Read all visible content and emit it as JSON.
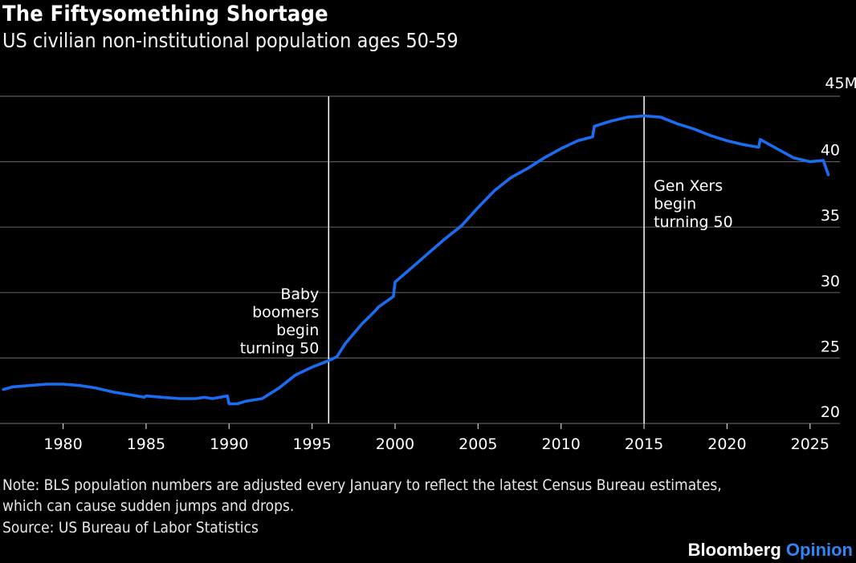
{
  "title": "The Fiftysomething Shortage",
  "subtitle": "US civilian non-institutional population ages 50-59",
  "note_line1": "Note: BLS population numbers are adjusted every January to reflect the latest Census Bureau estimates,",
  "note_line2": "which can cause sudden jumps and drops.",
  "source": "Source: US Bureau of Labor Statistics",
  "brand": {
    "name": "Bloomberg",
    "section": "Opinion"
  },
  "colors": {
    "line": "#1a6cf0",
    "grid": "#5a5a5a",
    "background": "#000000",
    "annotation_line": "#ffffff",
    "brand_accent": "#2f87f5"
  },
  "chart_data": {
    "type": "line",
    "x_unit": "year",
    "y_unit": "millions",
    "xlim": [
      1976.2,
      2026.8
    ],
    "ylim": [
      20,
      45
    ],
    "x_ticks": [
      1980,
      1985,
      1990,
      1995,
      2000,
      2005,
      2010,
      2015,
      2020,
      2025
    ],
    "y_ticks": [
      20,
      25,
      30,
      35,
      40,
      45
    ],
    "y_tick_labels": [
      "20",
      "25",
      "30",
      "35",
      "40",
      "45M"
    ],
    "y_axis_side": "right",
    "grid": "horizontal",
    "series": [
      {
        "x": [
          1976.4,
          1977.0,
          1978.0,
          1979.0,
          1980.0,
          1981.0,
          1982.0,
          1983.0,
          1984.0,
          1984.9,
          1985.0,
          1986.0,
          1987.0,
          1988.0,
          1988.5,
          1989.0,
          1989.9,
          1990.0,
          1990.5,
          1991.0,
          1991.5,
          1992.0,
          1993.0,
          1994.0,
          1995.0,
          1996.0,
          1996.5,
          1997.0,
          1998.0,
          1998.8,
          1999.0,
          1999.9,
          2000.0,
          2001.0,
          2002.0,
          2003.0,
          2004.0,
          2005.0,
          2006.0,
          2007.0,
          2008.0,
          2009.0,
          2010.0,
          2011.0,
          2011.9,
          2012.0,
          2013.0,
          2014.0,
          2015.0,
          2016.0,
          2017.0,
          2018.0,
          2019.0,
          2020.0,
          2021.0,
          2021.9,
          2022.0,
          2023.0,
          2024.0,
          2025.0,
          2025.8,
          2026.1
        ],
        "y": [
          22.6,
          22.8,
          22.9,
          23.0,
          23.0,
          22.9,
          22.7,
          22.4,
          22.2,
          22.0,
          22.1,
          22.0,
          21.9,
          21.9,
          22.0,
          21.9,
          22.1,
          21.5,
          21.5,
          21.7,
          21.8,
          21.9,
          22.7,
          23.7,
          24.3,
          24.8,
          25.1,
          26.1,
          27.6,
          28.6,
          28.9,
          29.7,
          30.8,
          31.9,
          33.0,
          34.1,
          35.1,
          36.5,
          37.8,
          38.8,
          39.5,
          40.3,
          41.0,
          41.6,
          41.9,
          42.7,
          43.1,
          43.4,
          43.5,
          43.4,
          42.9,
          42.5,
          42.0,
          41.6,
          41.3,
          41.1,
          41.7,
          41.0,
          40.3,
          40.0,
          40.1,
          39.0
        ]
      }
    ],
    "annotations": [
      {
        "x": 1996.0,
        "label_lines": [
          "Baby",
          "boomers",
          "begin",
          "turning 50"
        ],
        "align": "left-of-line"
      },
      {
        "x": 2015.0,
        "label_lines": [
          "Gen Xers",
          "begin",
          "turning 50"
        ],
        "align": "right-of-line"
      }
    ]
  }
}
